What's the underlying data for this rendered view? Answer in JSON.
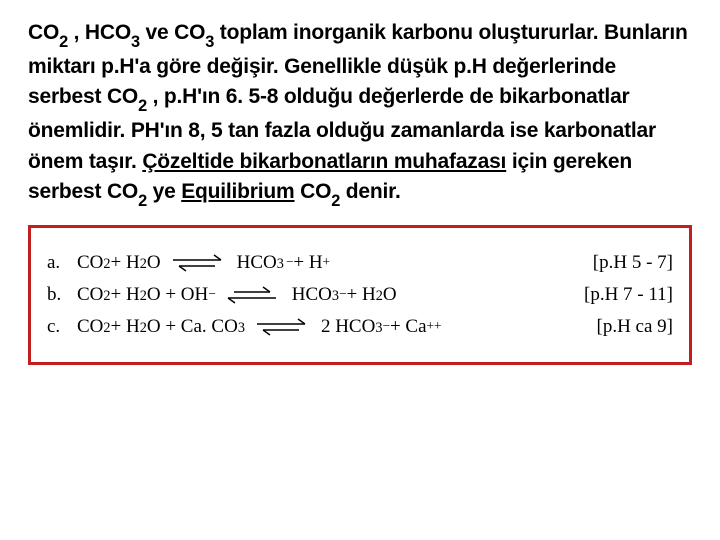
{
  "colors": {
    "text": "#000000",
    "box_border": "#c22020",
    "box_bg": "#ffffff"
  },
  "paragraph": {
    "parts": [
      {
        "type": "indent",
        "text": "   "
      },
      {
        "type": "formula",
        "base": "CO",
        "sub": "2"
      },
      {
        "type": "text",
        "text": " , "
      },
      {
        "type": "formula",
        "base": "HCO",
        "sub": "3"
      },
      {
        "type": "text",
        "text": "   ve "
      },
      {
        "type": "formula",
        "base": "CO",
        "sub": "3"
      },
      {
        "type": "text",
        "text": "  toplam inorganik karbonu oluştururlar. Bunların miktarı p.H'a göre değişir. Genellikle düşük p.H değerlerinde serbest "
      },
      {
        "type": "formula",
        "base": "CO",
        "sub": "2"
      },
      {
        "type": "text",
        "text": " , p.H'ın 6. 5-8 olduğu değerlerde de bikarbonatlar önemlidir. PH'ın 8, 5 tan fazla olduğu zamanlarda ise karbonatlar önem taşır. "
      },
      {
        "type": "underline",
        "text": "Çözeltide bikarbonatların  muhafazası"
      },
      {
        "type": "text",
        "text": " için gereken serbest         "
      },
      {
        "type": "formula",
        "base": "CO",
        "sub": "2"
      },
      {
        "type": "text",
        "text": "  ye "
      },
      {
        "type": "underline",
        "text": "Equilibrium"
      },
      {
        "type": "text",
        "text": "         "
      },
      {
        "type": "formula",
        "base": "CO",
        "sub": "2"
      },
      {
        "type": "text",
        "text": " denir."
      }
    ]
  },
  "equations": [
    {
      "label": "a.",
      "lhs": [
        {
          "base": "CO",
          "sub": "2",
          "sup": ""
        },
        {
          "text": " + "
        },
        {
          "base": "H",
          "sub": "2",
          "sup": ""
        },
        {
          "text": " O"
        }
      ],
      "arrow_bias": "top",
      "rhs": [
        {
          "base": "HCO",
          "sub": "3",
          "sup": "−",
          "supspace": true
        },
        {
          "text": "  +  "
        },
        {
          "base": "H",
          "sub": "",
          "sup": "+"
        }
      ],
      "ph": "[p.H 5 - 7]"
    },
    {
      "label": "b.",
      "lhs": [
        {
          "base": "CO",
          "sub": "2",
          "sup": ""
        },
        {
          "text": " + "
        },
        {
          "base": "H",
          "sub": "2",
          "sup": ""
        },
        {
          "text": " O + "
        },
        {
          "base": "OH",
          "sub": "",
          "sup": "−"
        }
      ],
      "arrow_bias": "bottom",
      "rhs": [
        {
          "base": "HCO",
          "sub": "3",
          "sup": "−"
        },
        {
          "text": "  +  "
        },
        {
          "base": "H",
          "sub": "2",
          "sup": ""
        },
        {
          "text": " O"
        }
      ],
      "ph": "[p.H 7 - 11]"
    },
    {
      "label": "c.",
      "lhs": [
        {
          "base": "CO",
          "sub": "2",
          "sup": ""
        },
        {
          "text": " + "
        },
        {
          "base": "H",
          "sub": "2",
          "sup": ""
        },
        {
          "text": " O + Ca. "
        },
        {
          "base": "CO",
          "sub": "3",
          "sup": ""
        }
      ],
      "arrow_bias": "top",
      "rhs": [
        {
          "text": "2 "
        },
        {
          "base": "HCO",
          "sub": "3",
          "sup": "−"
        },
        {
          "text": "  +  "
        },
        {
          "base": "Ca",
          "sub": "",
          "sup": "++"
        }
      ],
      "ph": "[p.H ca 9]"
    }
  ]
}
